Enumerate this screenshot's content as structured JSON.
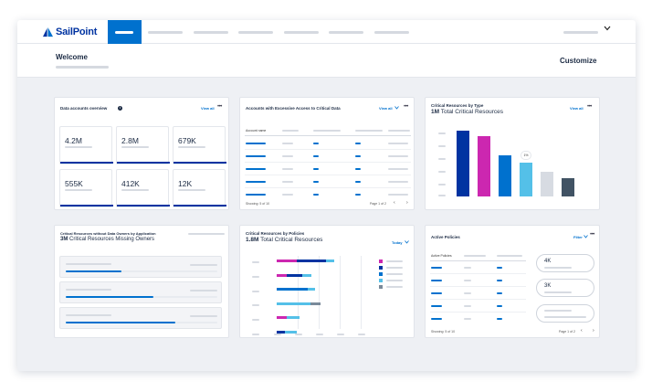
{
  "app": {
    "brand": "SailPoint",
    "brand_color": "#0033a1",
    "accent_color": "#0071ce",
    "welcome": "Welcome",
    "customize": "Customize",
    "user_menu_icon": "chevron-down-icon"
  },
  "cards": {
    "data_accounts": {
      "title": "Data accounts overview",
      "view_all": "View all",
      "more": "•••",
      "tiles": [
        {
          "value": "4.2M",
          "fill": 1.0
        },
        {
          "value": "2.8M",
          "fill": 1.0
        },
        {
          "value": "679K",
          "fill": 1.0
        },
        {
          "value": "555K",
          "fill": 1.0
        },
        {
          "value": "412K",
          "fill": 1.0
        },
        {
          "value": "12K",
          "fill": 1.0
        }
      ]
    },
    "excessive_access": {
      "title": "Accounts with Excessive Access to Critical Data",
      "view_all": "View all",
      "more": "•••",
      "column_header": "Account name",
      "footer": "Showing: 5 of 10",
      "pager": "Page 1 of 2",
      "prev": "‹",
      "next": "›"
    },
    "critical_by_type": {
      "title": "Critical Resources by Type",
      "subtitle_bold": "1M",
      "subtitle_rest": "Total Critical Resources",
      "view_all": "View all",
      "more": "•••"
    },
    "missing_owners": {
      "title": "Critical Resources without Data Owners by Application",
      "subtitle_bold": "3M",
      "subtitle_rest": "Critical Resources Missing Owners",
      "rows": [
        {
          "progress": 0.37
        },
        {
          "progress": 0.58
        },
        {
          "progress": 0.72
        }
      ]
    },
    "critical_by_policies": {
      "title": "Critical Resources by Policies",
      "subtitle_bold": "1.8M",
      "subtitle_rest": "Total Critical Resources",
      "filter": "Today"
    },
    "active_policies": {
      "title": "Active Policies",
      "filter": "Filter",
      "more": "•••",
      "column_header": "Active Policies",
      "pills": [
        {
          "value": "4K"
        },
        {
          "value": "3K"
        }
      ],
      "footer": "Showing: 5 of 10",
      "pager": "Page 1 of 2",
      "prev": "‹",
      "next": "›"
    }
  },
  "chart_data": [
    {
      "type": "bar",
      "title": "Critical Resources by Type",
      "categories": [
        "",
        "",
        "",
        "",
        "",
        ""
      ],
      "values": [
        100,
        92,
        62,
        51,
        38,
        28
      ],
      "colors": [
        "#0033a1",
        "#cc27b0",
        "#0071ce",
        "#54c0e8",
        "#d7dbe2",
        "#415364"
      ],
      "annotations": [
        {
          "index": 3,
          "text": "1%"
        }
      ],
      "ylim": [
        0,
        100
      ]
    },
    {
      "type": "bar",
      "orientation": "horizontal-stacked",
      "title": "Critical Resources by Policies",
      "categories": [
        "",
        "",
        "",
        "",
        "",
        ""
      ],
      "series": [
        {
          "name": "",
          "color": "#cc27b0",
          "values": [
            28,
            14,
            0,
            0,
            14,
            0
          ]
        },
        {
          "name": "",
          "color": "#0033a1",
          "values": [
            42,
            22,
            0,
            0,
            0,
            12
          ]
        },
        {
          "name": "",
          "color": "#0071ce",
          "values": [
            0,
            0,
            44,
            0,
            0,
            0
          ]
        },
        {
          "name": "",
          "color": "#54c0e8",
          "values": [
            12,
            14,
            10,
            48,
            18,
            16
          ]
        },
        {
          "name": "",
          "color": "#7a8a9a",
          "values": [
            0,
            0,
            0,
            14,
            0,
            0
          ]
        }
      ],
      "xlim": [
        0,
        130
      ]
    }
  ]
}
